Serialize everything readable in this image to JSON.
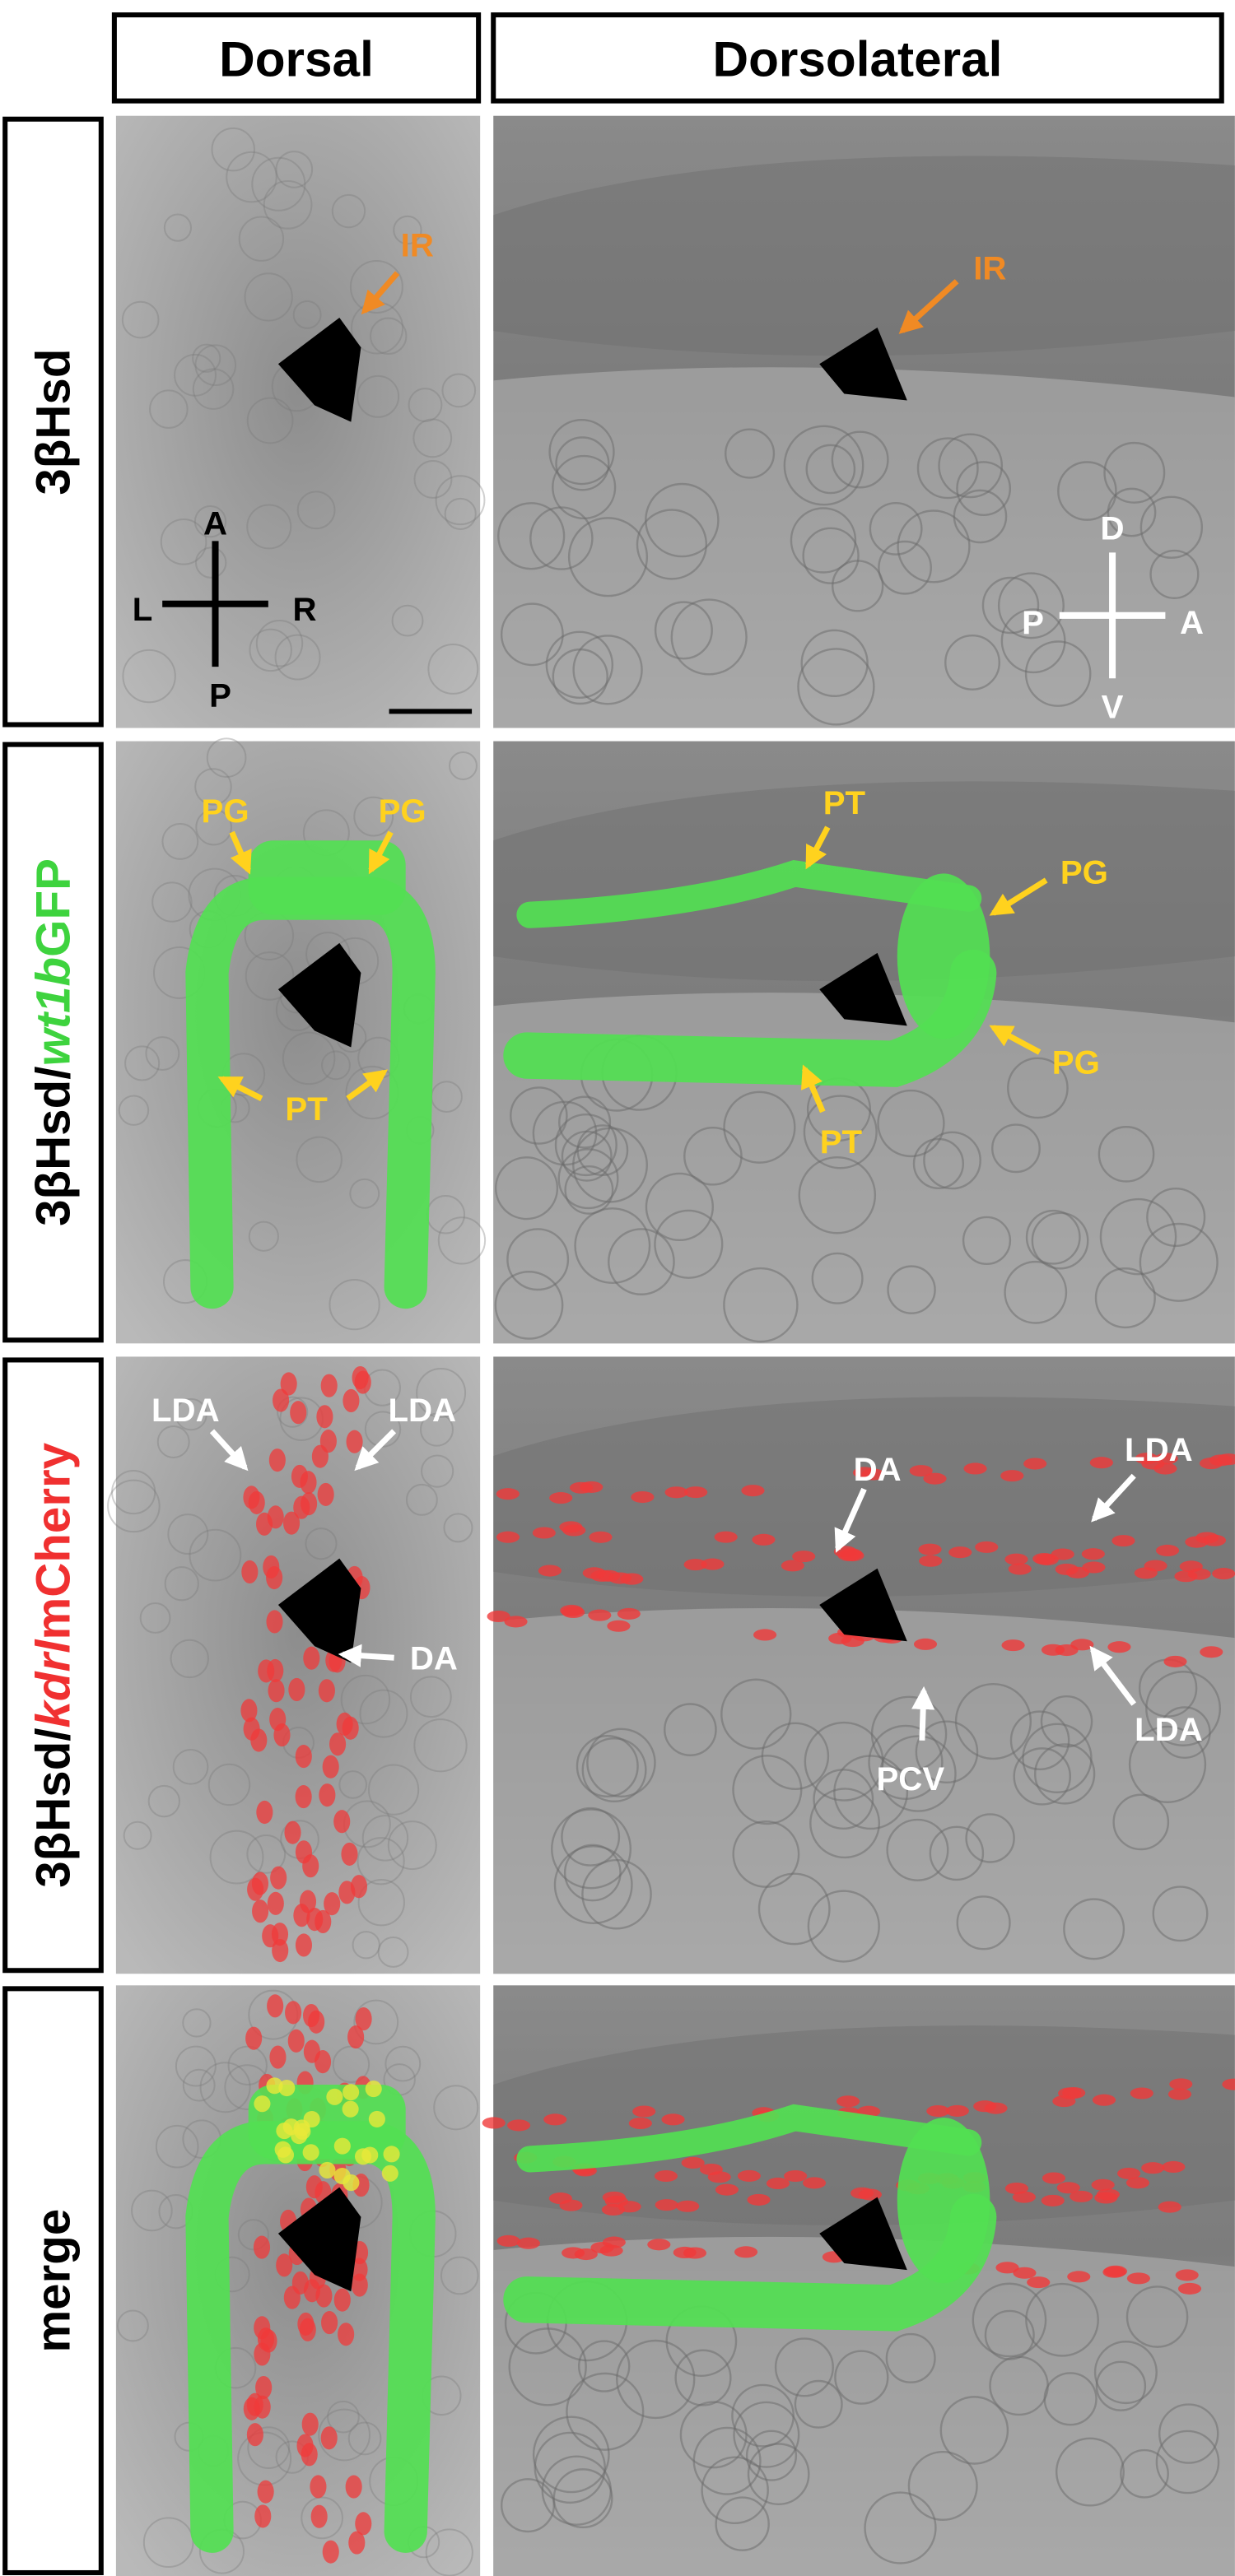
{
  "columns": [
    "Dorsal",
    "Dorsolateral"
  ],
  "rows": [
    {
      "label": [
        "3βHsd"
      ],
      "dorsal": [
        "IR"
      ],
      "dorsolateral": [
        "IR"
      ]
    },
    {
      "label": [
        "3βHsd/",
        "wt1b",
        "GFP"
      ],
      "dorsal": [
        "PG",
        "PG",
        "PT"
      ],
      "dorsolateral": [
        "PT",
        "PG",
        "PG",
        "PT"
      ]
    },
    {
      "label": [
        "3βHsd/",
        "kdrl",
        "mCherry"
      ],
      "dorsal": [
        "LDA",
        "LDA",
        "DA"
      ],
      "dorsolateral": [
        "DA",
        "LDA",
        "LDA",
        "PCV"
      ]
    },
    {
      "label": [
        "merge"
      ],
      "dorsal": [],
      "dorsolateral": []
    }
  ],
  "orientation": {
    "dorsal": [
      "A",
      "L",
      "R",
      "P"
    ],
    "dorsolateral": [
      "D",
      "P",
      "A",
      "V"
    ]
  }
}
